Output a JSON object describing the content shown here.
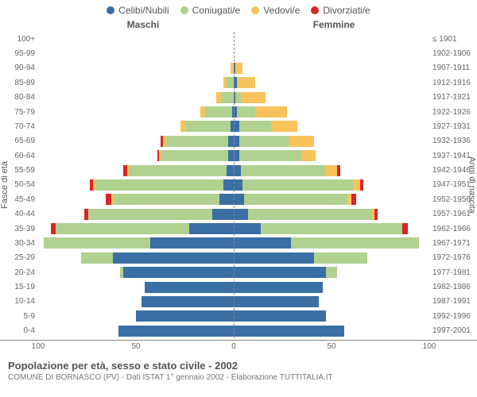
{
  "chart": {
    "type": "population-pyramid",
    "legend": [
      {
        "label": "Celibi/Nubili",
        "color": "#3a6fa6"
      },
      {
        "label": "Coniugati/e",
        "color": "#b0d190"
      },
      {
        "label": "Vedovi/e",
        "color": "#f7c35b"
      },
      {
        "label": "Divorziati/e",
        "color": "#d62728"
      }
    ],
    "header_left": "Maschi",
    "header_right": "Femmine",
    "y_axis_left_title": "Fasce di età",
    "y_axis_right_title": "Anni di nascita",
    "x_axis": {
      "max": 110,
      "ticks": [
        100,
        50,
        0,
        50,
        100
      ]
    },
    "title": "Popolazione per età, sesso e stato civile - 2002",
    "subtitle": "COMUNE DI BORNASCO (PV) - Dati ISTAT 1° gennaio 2002 - Elaborazione TUTTITALIA.IT",
    "background_color": "#ffffff",
    "grid_color": "#888888",
    "text_color": "#555555",
    "rows": [
      {
        "age": "100+",
        "birth": "≤ 1901",
        "m": {
          "c": 0,
          "m": 0,
          "w": 0,
          "d": 0
        },
        "f": {
          "c": 0,
          "m": 0,
          "w": 0,
          "d": 0
        }
      },
      {
        "age": "95-99",
        "birth": "1902-1906",
        "m": {
          "c": 0,
          "m": 0,
          "w": 0,
          "d": 0
        },
        "f": {
          "c": 0,
          "m": 0,
          "w": 0,
          "d": 0
        }
      },
      {
        "age": "90-94",
        "birth": "1907-1911",
        "m": {
          "c": 0,
          "m": 0,
          "w": 2,
          "d": 0
        },
        "f": {
          "c": 1,
          "m": 0,
          "w": 4,
          "d": 0
        }
      },
      {
        "age": "85-89",
        "birth": "1912-1916",
        "m": {
          "c": 0,
          "m": 4,
          "w": 2,
          "d": 0
        },
        "f": {
          "c": 2,
          "m": 0,
          "w": 10,
          "d": 0
        }
      },
      {
        "age": "80-84",
        "birth": "1917-1921",
        "m": {
          "c": 0,
          "m": 7,
          "w": 3,
          "d": 0
        },
        "f": {
          "c": 1,
          "m": 3,
          "w": 14,
          "d": 0
        }
      },
      {
        "age": "75-79",
        "birth": "1922-1926",
        "m": {
          "c": 1,
          "m": 15,
          "w": 3,
          "d": 0
        },
        "f": {
          "c": 2,
          "m": 10,
          "w": 18,
          "d": 0
        }
      },
      {
        "age": "70-74",
        "birth": "1927-1931",
        "m": {
          "c": 2,
          "m": 25,
          "w": 3,
          "d": 0
        },
        "f": {
          "c": 3,
          "m": 18,
          "w": 15,
          "d": 0
        }
      },
      {
        "age": "65-69",
        "birth": "1932-1936",
        "m": {
          "c": 3,
          "m": 35,
          "w": 2,
          "d": 1
        },
        "f": {
          "c": 3,
          "m": 28,
          "w": 14,
          "d": 0
        }
      },
      {
        "age": "60-64",
        "birth": "1937-1941",
        "m": {
          "c": 3,
          "m": 38,
          "w": 1,
          "d": 1
        },
        "f": {
          "c": 3,
          "m": 35,
          "w": 8,
          "d": 0
        }
      },
      {
        "age": "55-59",
        "birth": "1942-1946",
        "m": {
          "c": 4,
          "m": 55,
          "w": 1,
          "d": 2
        },
        "f": {
          "c": 4,
          "m": 48,
          "w": 6,
          "d": 2
        }
      },
      {
        "age": "50-54",
        "birth": "1947-1951",
        "m": {
          "c": 6,
          "m": 72,
          "w": 1,
          "d": 2
        },
        "f": {
          "c": 5,
          "m": 62,
          "w": 4,
          "d": 2
        }
      },
      {
        "age": "45-49",
        "birth": "1952-1956",
        "m": {
          "c": 8,
          "m": 60,
          "w": 1,
          "d": 3
        },
        "f": {
          "c": 6,
          "m": 58,
          "w": 2,
          "d": 3
        }
      },
      {
        "age": "40-44",
        "birth": "1957-1961",
        "m": {
          "c": 12,
          "m": 70,
          "w": 0,
          "d": 2
        },
        "f": {
          "c": 8,
          "m": 70,
          "w": 1,
          "d": 2
        }
      },
      {
        "age": "35-39",
        "birth": "1962-1966",
        "m": {
          "c": 25,
          "m": 75,
          "w": 0,
          "d": 3
        },
        "f": {
          "c": 15,
          "m": 80,
          "w": 0,
          "d": 3
        }
      },
      {
        "age": "30-34",
        "birth": "1967-1971",
        "m": {
          "c": 47,
          "m": 60,
          "w": 0,
          "d": 0
        },
        "f": {
          "c": 32,
          "m": 72,
          "w": 0,
          "d": 0
        }
      },
      {
        "age": "25-29",
        "birth": "1972-1976",
        "m": {
          "c": 68,
          "m": 18,
          "w": 0,
          "d": 0
        },
        "f": {
          "c": 45,
          "m": 30,
          "w": 0,
          "d": 0
        }
      },
      {
        "age": "20-24",
        "birth": "1977-1981",
        "m": {
          "c": 62,
          "m": 2,
          "w": 0,
          "d": 0
        },
        "f": {
          "c": 52,
          "m": 6,
          "w": 0,
          "d": 0
        }
      },
      {
        "age": "15-19",
        "birth": "1982-1986",
        "m": {
          "c": 50,
          "m": 0,
          "w": 0,
          "d": 0
        },
        "f": {
          "c": 50,
          "m": 0,
          "w": 0,
          "d": 0
        }
      },
      {
        "age": "10-14",
        "birth": "1987-1991",
        "m": {
          "c": 52,
          "m": 0,
          "w": 0,
          "d": 0
        },
        "f": {
          "c": 48,
          "m": 0,
          "w": 0,
          "d": 0
        }
      },
      {
        "age": "5-9",
        "birth": "1992-1996",
        "m": {
          "c": 55,
          "m": 0,
          "w": 0,
          "d": 0
        },
        "f": {
          "c": 52,
          "m": 0,
          "w": 0,
          "d": 0
        }
      },
      {
        "age": "0-4",
        "birth": "1997-2001",
        "m": {
          "c": 65,
          "m": 0,
          "w": 0,
          "d": 0
        },
        "f": {
          "c": 62,
          "m": 0,
          "w": 0,
          "d": 0
        }
      }
    ]
  }
}
